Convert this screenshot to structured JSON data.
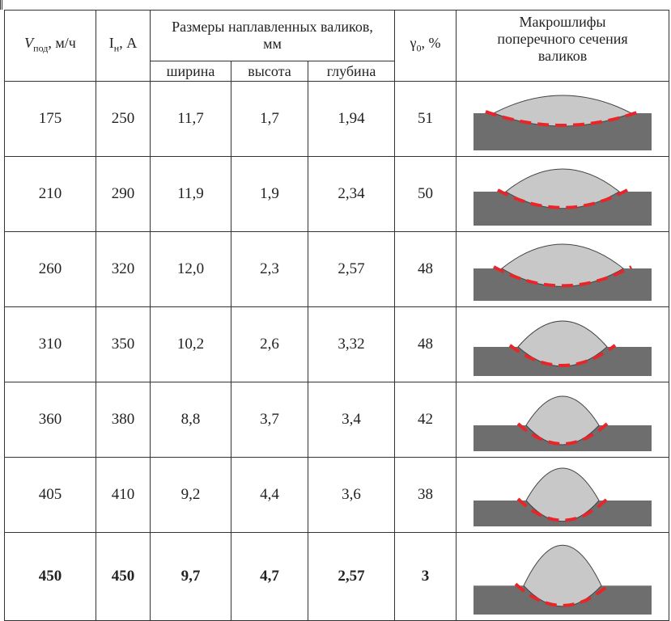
{
  "header": {
    "col1": {
      "symbol": "V",
      "sub": "под",
      "unit": ", м/ч"
    },
    "col2": {
      "symbol": "I",
      "sub": "н",
      "unit": ", А"
    },
    "dimensions": "Размеры наплавленных валиков, мм",
    "sub_cols": [
      "ширина",
      "высота",
      "глубина"
    ],
    "col6": {
      "symbol": "γ",
      "sub": "0",
      "unit": ", %"
    },
    "col7": "Макрошлифы поперечного сечения валиков"
  },
  "rows": [
    [
      "175",
      "250",
      "11,7",
      "1,7",
      "1,94",
      "51"
    ],
    [
      "210",
      "290",
      "11,9",
      "1,9",
      "2,34",
      "50"
    ],
    [
      "260",
      "320",
      "12,0",
      "2,3",
      "2,57",
      "48"
    ],
    [
      "310",
      "350",
      "10,2",
      "2,6",
      "3,32",
      "48"
    ],
    [
      "360",
      "380",
      "8,8",
      "3,7",
      "3,4",
      "42"
    ],
    [
      "405",
      "410",
      "9,2",
      "4,4",
      "3,6",
      "38"
    ],
    [
      "450",
      "450",
      "9,7",
      "4,7",
      "2,57",
      "3"
    ]
  ]
}
